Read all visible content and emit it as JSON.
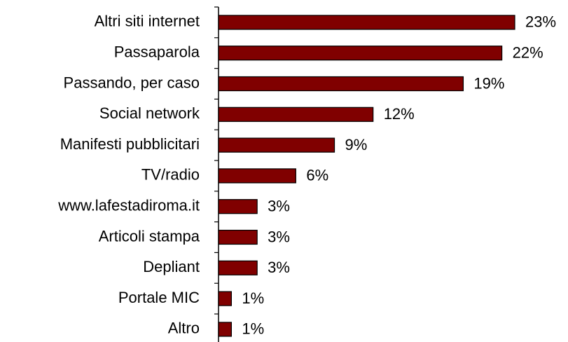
{
  "chart_data": {
    "type": "hbar",
    "categories": [
      "Altri siti internet",
      "Passaparola",
      "Passando, per caso",
      "Social network",
      "Manifesti pubblicitari",
      "TV/radio",
      "www.lafestadiroma.it",
      "Articoli stampa",
      "Depliant",
      "Portale MIC",
      "Altro"
    ],
    "values": [
      23,
      22,
      19,
      12,
      9,
      6,
      3,
      3,
      3,
      1,
      1
    ],
    "value_labels": [
      "23%",
      "22%",
      "19%",
      "12%",
      "9%",
      "6%",
      "3%",
      "3%",
      "3%",
      "1%",
      "1%"
    ],
    "color": "#800000"
  }
}
